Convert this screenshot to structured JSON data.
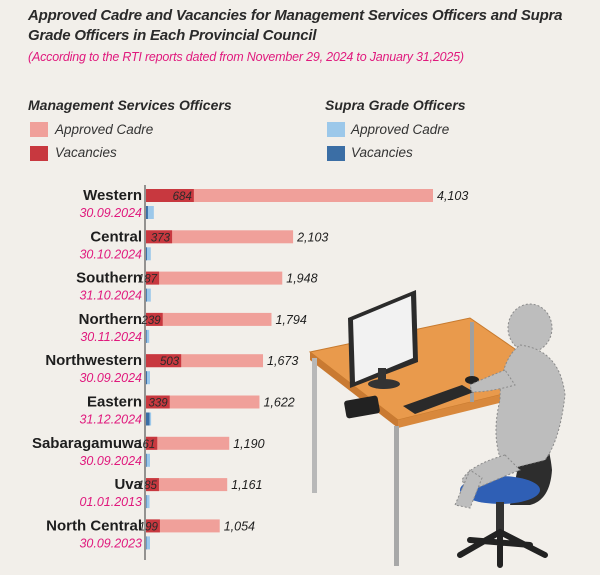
{
  "title": "Approved Cadre and Vacancies for Management Services Officers and Supra Grade Officers in Each Provincial Council",
  "subtitle": "(According to the RTI reports dated from November 29, 2024 to January 31,2025)",
  "legend": {
    "mso_heading": "Management Services Officers",
    "sgo_heading": "Supra Grade Officers",
    "approved_label": "Approved Cadre",
    "vacancies_label": "Vacancies"
  },
  "colors": {
    "mso_approved": "#f0a09a",
    "mso_vacancies": "#c8383f",
    "sgo_approved": "#9cc8ea",
    "sgo_vacancies": "#3b6ea5",
    "date_text": "#e0197d"
  },
  "chart_data": {
    "type": "bar",
    "orientation": "horizontal",
    "categories": [
      "Western",
      "Central",
      "Southern",
      "Northern",
      "Northwestern",
      "Eastern",
      "Sabaragamuwa",
      "Uva",
      "North Central"
    ],
    "dates": [
      "30.09.2024",
      "30.10.2024",
      "31.10.2024",
      "30.11.2024",
      "30.09.2024",
      "31.12.2024",
      "30.09.2024",
      "01.01.2013",
      "30.09.2023"
    ],
    "series": [
      {
        "name": "Management Services Officers - Approved Cadre",
        "values": [
          4103,
          2103,
          1948,
          1794,
          1673,
          1622,
          1190,
          1161,
          1054
        ],
        "labels": [
          "4,103",
          "2,103",
          "1,948",
          "1,794",
          "1,673",
          "1,622",
          "1,190",
          "1,161",
          "1,054"
        ]
      },
      {
        "name": "Management Services Officers - Vacancies",
        "values": [
          684,
          373,
          187,
          239,
          503,
          339,
          161,
          185,
          199
        ],
        "labels": [
          "684",
          "373",
          "187",
          "239",
          "503",
          "339",
          "161",
          "185",
          "199"
        ]
      },
      {
        "name": "Supra Grade Officers - Approved Cadre",
        "values": [
          49,
          30,
          30,
          20,
          25,
          32,
          25,
          22,
          25
        ]
      },
      {
        "name": "Supra Grade Officers - Vacancies",
        "values": [
          12,
          6,
          5,
          4,
          6,
          22,
          4,
          3,
          3
        ]
      }
    ]
  }
}
